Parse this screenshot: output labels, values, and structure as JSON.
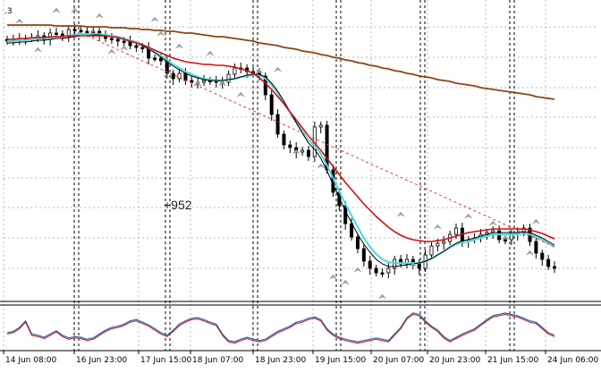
{
  "corner_label": ".3",
  "annotation_text": "+952",
  "colors": {
    "background": "#ffffff",
    "grid": "#b9b9b9",
    "candle": "#000000",
    "ma_fast": "#4fd7e0",
    "ma_mid": "#000000",
    "ma_slow": "#d40d0d",
    "ma_long": "#8b4513",
    "trend": "#e0403a",
    "osc_main": "#1c6fb8",
    "osc_signal": "#d40d0d",
    "fractal": "#a0a0a0"
  },
  "chart_data": {
    "type": "line",
    "title": "",
    "xlabel": "",
    "ylabel": "",
    "x_tick_labels": [
      "14 Jun 08:00",
      "16 Jun 23:00",
      "17 Jun 15:00",
      "18 Jun 07:00",
      "18 Jun 23:00",
      "19 Jun 15:00",
      "20 Jun 07:00",
      "20 Jun 23:00",
      "21 Jun 15:00",
      "24 Jun 06:00"
    ],
    "grid": true,
    "annotations": [
      "+952"
    ],
    "series": [
      {
        "name": "",
        "role": "price_close",
        "values": [
          46,
          44,
          43,
          43,
          42,
          40,
          44,
          37,
          38,
          41,
          33,
          34,
          35,
          36,
          35,
          39,
          43,
          44,
          46,
          46,
          51,
          53,
          53,
          65,
          65,
          68,
          82,
          88,
          82,
          90,
          92,
          92,
          90,
          90,
          92,
          92,
          83,
          76,
          76,
          80,
          82,
          85,
          106,
          128,
          150,
          162,
          165,
          170,
          168,
          175,
          142,
          140,
          190,
          215,
          230,
          250,
          265,
          278,
          292,
          300,
          305,
          305,
          300,
          290,
          295,
          290,
          295,
          300,
          285,
          275,
          272,
          270,
          262,
          255,
          270,
          268,
          266,
          262,
          260,
          258,
          268,
          268,
          262,
          260,
          255,
          270,
          283,
          290,
          298,
          300
        ]
      },
      {
        "name": "",
        "role": "ma_fast",
        "values": [
          46,
          46,
          45,
          45,
          44,
          43,
          43,
          42,
          41,
          41,
          40,
          39,
          38,
          38,
          38,
          38,
          39,
          40,
          41,
          43,
          45,
          47,
          50,
          54,
          58,
          62,
          67,
          72,
          76,
          80,
          83,
          86,
          88,
          89,
          90,
          90,
          89,
          88,
          86,
          85,
          84,
          84,
          88,
          95,
          104,
          115,
          126,
          137,
          147,
          157,
          163,
          172,
          185,
          199,
          214,
          228,
          241,
          254,
          266,
          276,
          284,
          290,
          293,
          294,
          294,
          294,
          294,
          294,
          292,
          289,
          285,
          281,
          277,
          273,
          271,
          270,
          268,
          266,
          264,
          262,
          262,
          262,
          262,
          262,
          261,
          262,
          265,
          268,
          272,
          276
        ]
      },
      {
        "name": "",
        "role": "ma_mid",
        "values": [
          48,
          48,
          47,
          47,
          46,
          45,
          45,
          44,
          43,
          43,
          42,
          41,
          40,
          40,
          39,
          39,
          40,
          41,
          42,
          44,
          46,
          48,
          51,
          55,
          59,
          64,
          69,
          74,
          78,
          82,
          85,
          87,
          89,
          90,
          90,
          90,
          89,
          88,
          86,
          84,
          83,
          83,
          86,
          93,
          102,
          113,
          125,
          137,
          149,
          160,
          167,
          177,
          191,
          206,
          221,
          236,
          249,
          262,
          273,
          282,
          290,
          295,
          298,
          298,
          297,
          296,
          295,
          294,
          292,
          289,
          285,
          281,
          276,
          272,
          269,
          268,
          266,
          264,
          262,
          260,
          260,
          260,
          260,
          260,
          259,
          260,
          263,
          266,
          270,
          274
        ]
      },
      {
        "name": "",
        "role": "ma_slow",
        "values": [
          44,
          44,
          43,
          43,
          42,
          42,
          42,
          41,
          41,
          41,
          40,
          40,
          40,
          40,
          40,
          40,
          40,
          41,
          42,
          44,
          46,
          48,
          50,
          53,
          56,
          59,
          62,
          65,
          67,
          69,
          70,
          71,
          72,
          72,
          73,
          73,
          74,
          75,
          77,
          79,
          82,
          87,
          93,
          100,
          108,
          116,
          125,
          134,
          143,
          152,
          160,
          168,
          177,
          186,
          195,
          204,
          212,
          220,
          228,
          235,
          242,
          248,
          254,
          259,
          263,
          266,
          268,
          269,
          270,
          270,
          269,
          268,
          266,
          264,
          262,
          260,
          259,
          258,
          257,
          256,
          256,
          256,
          256,
          256,
          256,
          257,
          259,
          261,
          264,
          267
        ]
      },
      {
        "name": "",
        "role": "ma_long",
        "values": [
          28,
          28,
          28,
          28,
          28,
          28,
          28,
          28,
          29,
          29,
          29,
          29,
          29,
          30,
          30,
          30,
          30,
          31,
          31,
          31,
          32,
          32,
          33,
          33,
          34,
          34,
          35,
          35,
          36,
          37,
          37,
          38,
          39,
          40,
          41,
          41,
          42,
          43,
          44,
          45,
          46,
          48,
          49,
          50,
          51,
          53,
          54,
          55,
          57,
          58,
          59,
          61,
          62,
          64,
          65,
          67,
          68,
          70,
          71,
          73,
          74,
          76,
          77,
          79,
          80,
          82,
          83,
          85,
          86,
          87,
          89,
          90,
          91,
          93,
          94,
          95,
          96,
          98,
          99,
          100,
          101,
          102,
          103,
          104,
          105,
          106,
          108,
          109,
          110,
          111
        ]
      },
      {
        "name": "",
        "role": "oscillator",
        "values": [
          22,
          24,
          30,
          40,
          20,
          18,
          15,
          20,
          25,
          18,
          14,
          16,
          15,
          12,
          14,
          20,
          26,
          30,
          32,
          35,
          40,
          42,
          38,
          34,
          28,
          22,
          18,
          26,
          35,
          40,
          44,
          45,
          42,
          38,
          35,
          20,
          10,
          8,
          12,
          15,
          12,
          10,
          12,
          18,
          24,
          28,
          32,
          38,
          40,
          44,
          46,
          42,
          28,
          20,
          15,
          12,
          10,
          8,
          10,
          12,
          14,
          12,
          10,
          20,
          30,
          45,
          52,
          50,
          40,
          32,
          26,
          16,
          10,
          15,
          20,
          24,
          28,
          35,
          42,
          48,
          50,
          52,
          50,
          48,
          44,
          40,
          38,
          30,
          22,
          18
        ]
      }
    ]
  }
}
